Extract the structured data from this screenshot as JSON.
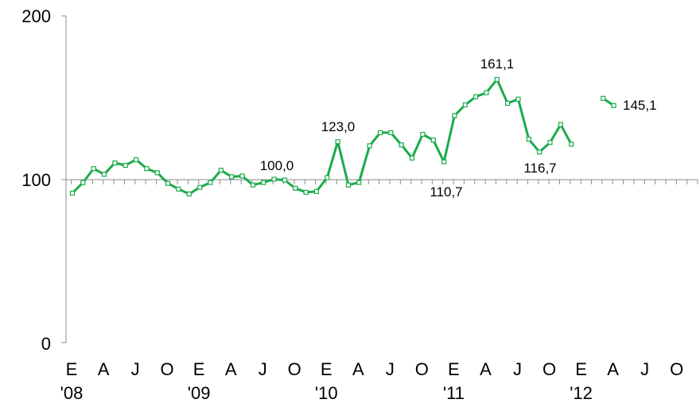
{
  "chart_data": {
    "type": "line",
    "title": "",
    "xlabel": "",
    "ylabel": "",
    "ylim": [
      0,
      200
    ],
    "y_ticks": [
      "0",
      "100",
      "200"
    ],
    "x_month_letters": [
      "E",
      "A",
      "J",
      "O",
      "E",
      "A",
      "J",
      "O",
      "E",
      "A",
      "J",
      "O",
      "E",
      "A",
      "J",
      "O",
      "E",
      "A",
      "J",
      "O"
    ],
    "x_year_labels": [
      "'08",
      "'09",
      "'10",
      "'11",
      "'12"
    ],
    "grid": false,
    "legend": "none",
    "line_color": "#1aab4b",
    "series": [
      {
        "values": [
          91.5,
          98,
          106.5,
          103,
          110,
          108.5,
          112,
          106.5,
          104,
          97.5,
          94,
          91,
          95,
          98,
          105.5,
          101.5,
          102,
          96.5,
          98,
          100,
          99.5,
          94.5,
          92,
          92.5,
          101,
          123,
          96.5,
          98,
          120.5,
          128.5,
          128.5,
          121,
          113,
          127.5,
          124,
          110.7,
          139,
          145.5,
          150.5,
          153,
          161.1,
          146.5,
          149,
          124.5,
          116.7,
          122.5,
          133.5,
          121.5,
          null,
          null,
          149.5,
          145.1
        ]
      }
    ],
    "annotations": [
      "100,0",
      "123,0",
      "110,7",
      "161,1",
      "116,7",
      "145,1"
    ]
  }
}
